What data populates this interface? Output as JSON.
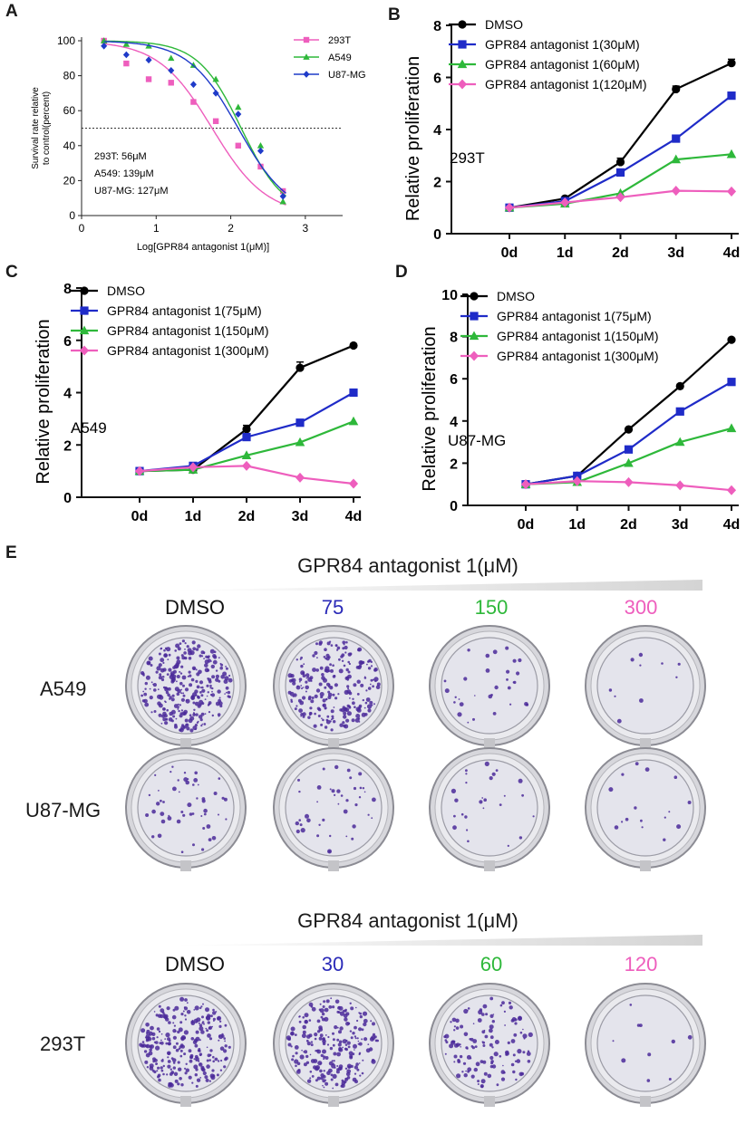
{
  "panel_letters": [
    "A",
    "B",
    "C",
    "D",
    "E"
  ],
  "chart_data": [
    {
      "panel": "A",
      "type": "scatter",
      "xlabel": "Log[GPR84 antagonist 1(μM)]",
      "ylabel_lines": [
        "Survival rate relative",
        "to control(percent)"
      ],
      "xlim": [
        0,
        3.5
      ],
      "ylim": [
        0,
        100
      ],
      "xticks": [
        0,
        1,
        2,
        3
      ],
      "yticks": [
        0,
        20,
        40,
        60,
        80,
        100
      ],
      "reference_line_y": 50,
      "annotations": [
        "293T: 56μM",
        "A549: 139μM",
        "U87-MG: 127μM"
      ],
      "legend_position": "top-right",
      "series": [
        {
          "name": "293T",
          "color": "#ee5ebd",
          "marker": "square",
          "x": [
            0.3,
            0.6,
            0.9,
            1.2,
            1.5,
            1.8,
            2.1,
            2.4,
            2.7
          ],
          "y": [
            100,
            87,
            78,
            76,
            65,
            54,
            40,
            28,
            14
          ],
          "fit_logIC50": 1.75,
          "fit_hill": 1.2
        },
        {
          "name": "A549",
          "color": "#2eb83a",
          "marker": "triangle",
          "x": [
            0.3,
            0.6,
            0.9,
            1.2,
            1.5,
            1.8,
            2.1,
            2.4,
            2.7
          ],
          "y": [
            100,
            98,
            97,
            90,
            86,
            78,
            62,
            40,
            8
          ],
          "fit_logIC50": 2.14,
          "fit_hill": 1.5
        },
        {
          "name": "U87-MG",
          "color": "#1f3bc9",
          "marker": "diamond",
          "x": [
            0.3,
            0.6,
            0.9,
            1.2,
            1.5,
            1.8,
            2.1,
            2.4,
            2.7
          ],
          "y": [
            97,
            92,
            89,
            83,
            75,
            70,
            58,
            37,
            11
          ],
          "fit_logIC50": 2.1,
          "fit_hill": 1.3
        }
      ]
    },
    {
      "panel": "B",
      "type": "line",
      "categories": [
        "0d",
        "1d",
        "2d",
        "3d",
        "4d"
      ],
      "ylabel": "Relative proliferation",
      "ylim": [
        0,
        8
      ],
      "yticks": [
        0,
        2,
        4,
        6,
        8
      ],
      "inset_label": "293T",
      "legend_position": "top-left",
      "series": [
        {
          "name": "DMSO",
          "color": "#000000",
          "marker": "circle",
          "values": [
            1.0,
            1.35,
            2.75,
            5.55,
            6.55
          ],
          "errors": [
            0.03,
            0.05,
            0.15,
            0.12,
            0.15
          ]
        },
        {
          "name": "GPR84 antagonist 1(30μM)",
          "color": "#1f2bc8",
          "marker": "square",
          "values": [
            1.0,
            1.25,
            2.35,
            3.65,
            5.3
          ],
          "errors": [
            0,
            0,
            0,
            0.12,
            0
          ]
        },
        {
          "name": "GPR84 antagonist 1(60μM)",
          "color": "#2eb83a",
          "marker": "triangle",
          "values": [
            1.0,
            1.15,
            1.55,
            2.85,
            3.05
          ],
          "errors": [
            0,
            0,
            0,
            0,
            0
          ]
        },
        {
          "name": "GPR84 antagonist 1(120μM)",
          "color": "#ee5ebd",
          "marker": "diamond",
          "values": [
            1.0,
            1.2,
            1.4,
            1.65,
            1.62
          ],
          "errors": [
            0,
            0,
            0,
            0,
            0
          ]
        }
      ]
    },
    {
      "panel": "C",
      "type": "line",
      "categories": [
        "0d",
        "1d",
        "2d",
        "3d",
        "4d"
      ],
      "ylabel": "Relative proliferation",
      "ylim": [
        0,
        8
      ],
      "yticks": [
        0,
        2,
        4,
        6,
        8
      ],
      "inset_label": "A549",
      "legend_position": "top-left",
      "series": [
        {
          "name": "DMSO",
          "color": "#000000",
          "marker": "circle",
          "values": [
            1.0,
            1.05,
            2.6,
            4.95,
            5.8
          ],
          "errors": [
            0.03,
            0.05,
            0.15,
            0.22,
            0
          ]
        },
        {
          "name": "GPR84 antagonist 1(75μM)",
          "color": "#1f2bc8",
          "marker": "square",
          "values": [
            1.0,
            1.2,
            2.3,
            2.85,
            4.0
          ],
          "errors": [
            0,
            0,
            0,
            0,
            0
          ]
        },
        {
          "name": "GPR84 antagonist 1(150μM)",
          "color": "#2eb83a",
          "marker": "triangle",
          "values": [
            1.0,
            1.05,
            1.6,
            2.1,
            2.9
          ],
          "errors": [
            0,
            0,
            0,
            0,
            0
          ]
        },
        {
          "name": "GPR84 antagonist 1(300μM)",
          "color": "#ee5ebd",
          "marker": "diamond",
          "values": [
            1.0,
            1.15,
            1.2,
            0.75,
            0.52
          ],
          "errors": [
            0,
            0,
            0,
            0,
            0
          ]
        }
      ]
    },
    {
      "panel": "D",
      "type": "line",
      "categories": [
        "0d",
        "1d",
        "2d",
        "3d",
        "4d"
      ],
      "ylabel": "Relative proliferation",
      "ylim": [
        0,
        10
      ],
      "yticks": [
        0,
        2,
        4,
        6,
        8,
        10
      ],
      "inset_label": "U87-MG",
      "legend_position": "top-left",
      "series": [
        {
          "name": "DMSO",
          "color": "#000000",
          "marker": "circle",
          "values": [
            1.0,
            1.4,
            3.6,
            5.65,
            7.85
          ],
          "errors": [
            0,
            0,
            0,
            0,
            0
          ]
        },
        {
          "name": "GPR84 antagonist 1(75μM)",
          "color": "#1f2bc8",
          "marker": "square",
          "values": [
            1.0,
            1.4,
            2.65,
            4.45,
            5.85
          ],
          "errors": [
            0,
            0,
            0,
            0,
            0
          ]
        },
        {
          "name": "GPR84 antagonist 1(150μM)",
          "color": "#2eb83a",
          "marker": "triangle",
          "values": [
            1.0,
            1.1,
            2.0,
            3.0,
            3.65
          ],
          "errors": [
            0,
            0,
            0,
            0,
            0
          ]
        },
        {
          "name": "GPR84 antagonist 1(300μM)",
          "color": "#ee5ebd",
          "marker": "diamond",
          "values": [
            1.0,
            1.15,
            1.1,
            0.95,
            0.72
          ],
          "errors": [
            0,
            0,
            0,
            0,
            0
          ]
        }
      ]
    }
  ],
  "panel_e": {
    "gradient_title": "GPR84 antagonist 1(μM)",
    "colors": {
      "dmso": "#111111",
      "low": "#2a2ab8",
      "mid": "#2eb83a",
      "high": "#ee5ebd",
      "stain": "#4b2a9a"
    },
    "block1": {
      "concentrations": [
        "DMSO",
        "75",
        "150",
        "300"
      ],
      "rows": [
        {
          "label": "A549",
          "stain_density": [
            0.55,
            0.45,
            0.06,
            0.02
          ]
        },
        {
          "label": "U87-MG",
          "stain_density": [
            0.1,
            0.08,
            0.05,
            0.03
          ]
        }
      ]
    },
    "block2": {
      "concentrations": [
        "DMSO",
        "30",
        "60",
        "120"
      ],
      "rows": [
        {
          "label": "293T",
          "stain_density": [
            0.5,
            0.45,
            0.25,
            0.02
          ]
        }
      ]
    }
  }
}
